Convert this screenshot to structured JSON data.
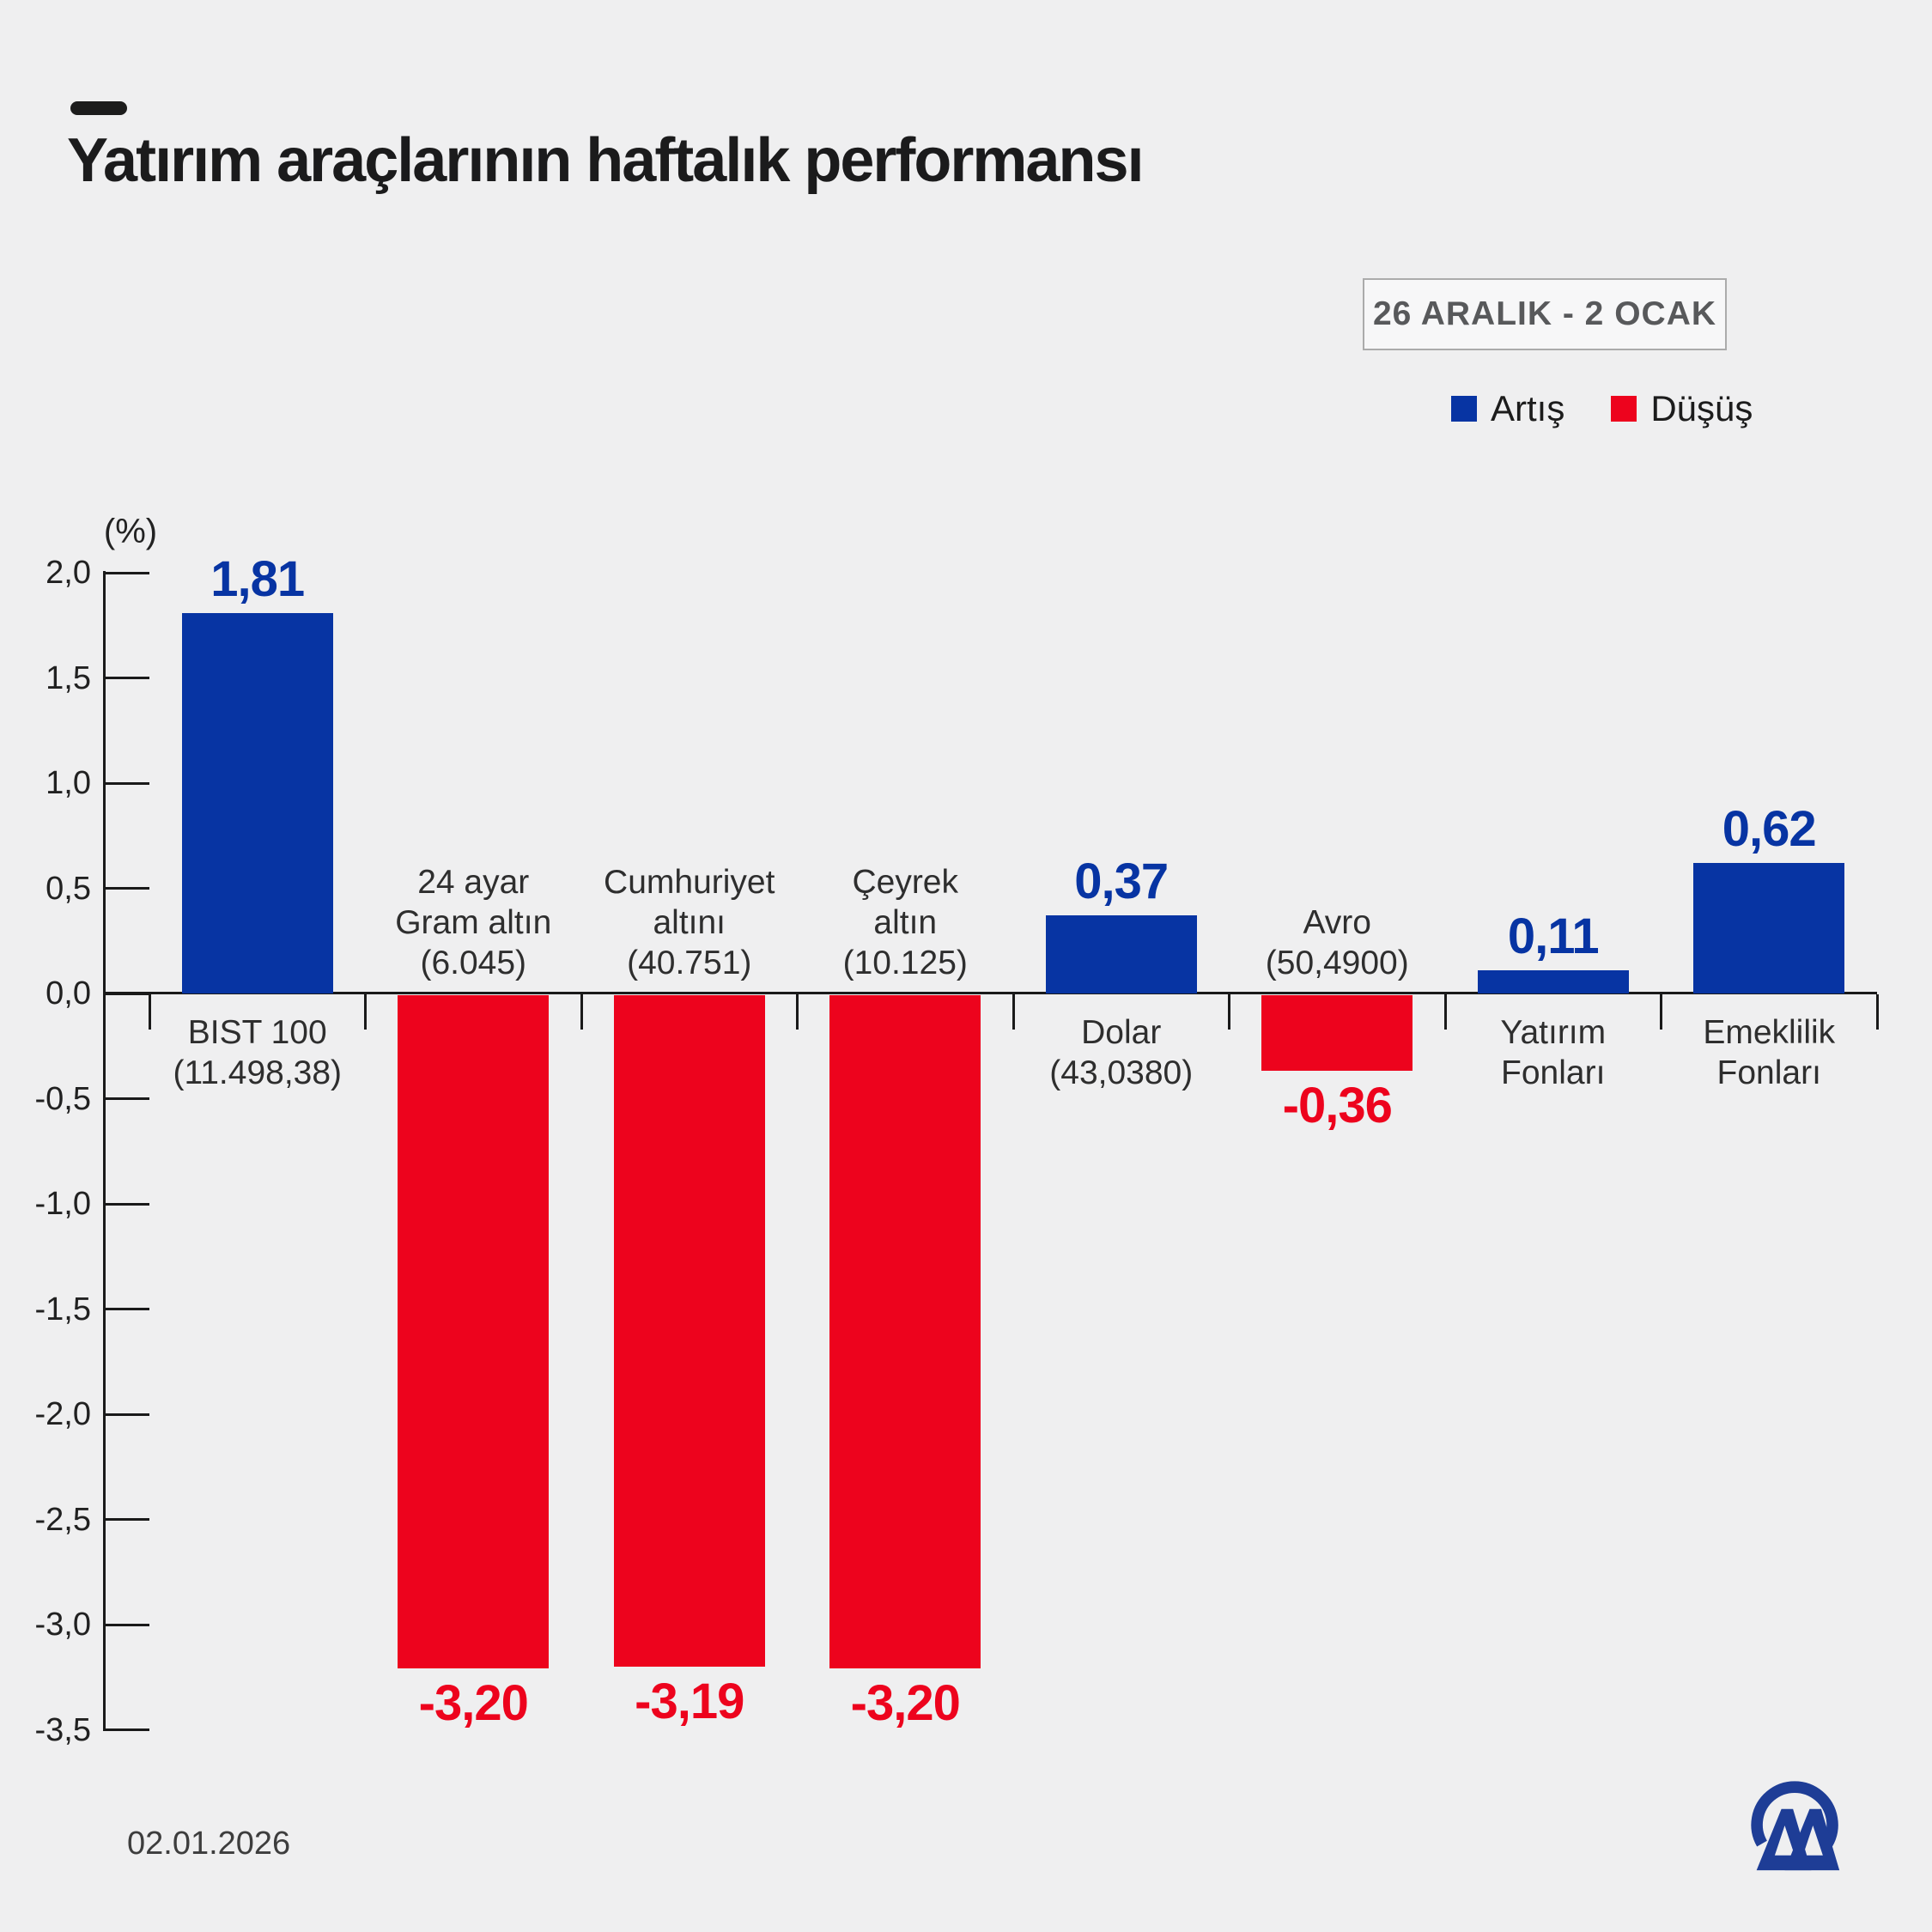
{
  "header": {
    "title": "Yatırım araçlarının haftalık performansı",
    "date_range": "26 ARALIK - 2 OCAK"
  },
  "legend": {
    "up_label": "Artış",
    "down_label": "Düşüş"
  },
  "footer": {
    "date": "02.01.2026",
    "logo": "AA"
  },
  "colors": {
    "up": "#0734a3",
    "down": "#ed031d",
    "background": "#efeff0",
    "axis": "#1a1a1a",
    "logo_blue": "#1e3d96"
  },
  "chart_data": {
    "type": "bar",
    "title": "Yatırım araçlarının haftalık performansı",
    "unit_label": "(%)",
    "xlabel": "",
    "ylabel": "(%)",
    "ylim": [
      -3.5,
      2.0
    ],
    "y_tick_step": 0.5,
    "grid": false,
    "legend_position": "top-right",
    "y_ticks": [
      {
        "value": 2.0,
        "label": "2,0"
      },
      {
        "value": 1.5,
        "label": "1,5"
      },
      {
        "value": 1.0,
        "label": "1,0"
      },
      {
        "value": 0.5,
        "label": "0,5"
      },
      {
        "value": 0.0,
        "label": "0,0"
      },
      {
        "value": -0.5,
        "label": "-0,5"
      },
      {
        "value": -1.0,
        "label": "-1,0"
      },
      {
        "value": -1.5,
        "label": "-1,5"
      },
      {
        "value": -2.0,
        "label": "-2,0"
      },
      {
        "value": -2.5,
        "label": "-2,5"
      },
      {
        "value": -3.0,
        "label": "-3,0"
      },
      {
        "value": -3.5,
        "label": "-3,5"
      }
    ],
    "categories": [
      {
        "lines": [
          "BIST 100",
          "(11.498,38)"
        ],
        "value": 1.81,
        "value_label": "1,81",
        "direction": "up"
      },
      {
        "lines": [
          "24 ayar",
          "Gram altın",
          "(6.045)"
        ],
        "value": -3.2,
        "value_label": "-3,20",
        "direction": "down"
      },
      {
        "lines": [
          "Cumhuriyet",
          "altını",
          "(40.751)"
        ],
        "value": -3.19,
        "value_label": "-3,19",
        "direction": "down"
      },
      {
        "lines": [
          "Çeyrek",
          "altın",
          "(10.125)"
        ],
        "value": -3.2,
        "value_label": "-3,20",
        "direction": "down"
      },
      {
        "lines": [
          "Dolar",
          "(43,0380)"
        ],
        "value": 0.37,
        "value_label": "0,37",
        "direction": "up"
      },
      {
        "lines": [
          "Avro",
          "(50,4900)"
        ],
        "value": -0.36,
        "value_label": "-0,36",
        "direction": "down"
      },
      {
        "lines": [
          "Yatırım",
          "Fonları"
        ],
        "value": 0.11,
        "value_label": "0,11",
        "direction": "up"
      },
      {
        "lines": [
          "Emeklilik",
          "Fonları"
        ],
        "value": 0.62,
        "value_label": "0,62",
        "direction": "up"
      }
    ]
  }
}
